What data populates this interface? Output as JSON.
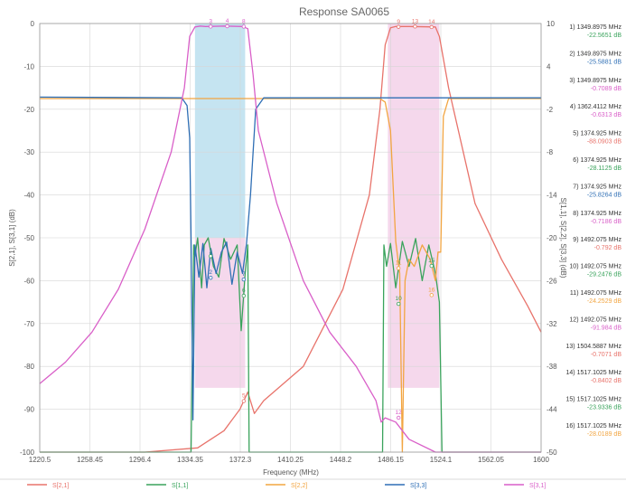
{
  "chart_data": {
    "type": "line",
    "title": "Response SA0065",
    "xlabel": "Frequency (MHz)",
    "ylabel_left": "S[2,1], S[3,1] (dB)",
    "ylabel_right": "S[1,1], S[2,2], S[3,3] (dB)",
    "xlim": [
      1220.5,
      1600
    ],
    "ylim_left": [
      -100,
      0
    ],
    "ylim_right": [
      -50,
      10
    ],
    "x_ticks": [
      "1220.5",
      "1258.45",
      "1296.4",
      "1334.35",
      "1372.3",
      "1410.25",
      "1448.2",
      "1486.15",
      "1524.1",
      "1562.05",
      "1600"
    ],
    "y_ticks_left": [
      "0",
      "-10",
      "-20",
      "-30",
      "-40",
      "-50",
      "-60",
      "-70",
      "-80",
      "-90",
      "-100"
    ],
    "y_ticks_right": [
      "10",
      "4",
      "-2",
      "-8",
      "-14",
      "-20",
      "-26",
      "-32",
      "-38",
      "-44",
      "-50"
    ],
    "grid": true,
    "legend_position": "bottom",
    "colors": {
      "S21": "#e8736b",
      "S11": "#3aa35c",
      "S22": "#f2a541",
      "S33": "#2f6fb5",
      "S31": "#d95fc8",
      "band1_fill": "#7fc4e0",
      "band2_fill": "#e8a8d4"
    },
    "series": [
      {
        "name": "S[2,1]",
        "axis": "left",
        "color": "#e8736b",
        "x": [
          1220.5,
          1300,
          1340,
          1360,
          1372,
          1378,
          1381,
          1383,
          1390,
          1420,
          1450,
          1470,
          1478,
          1482,
          1486,
          1490,
          1500,
          1520,
          1523,
          1530,
          1550,
          1570,
          1590,
          1600
        ],
        "y": [
          -100,
          -100,
          -99,
          -95,
          -90,
          -86,
          -89,
          -91,
          -88,
          -80,
          -62,
          -40,
          -20,
          -5,
          -1,
          -0.7,
          -0.7,
          -0.8,
          -3,
          -15,
          -42,
          -55,
          -66,
          -72
        ]
      },
      {
        "name": "S[1,1]",
        "axis": "right",
        "color": "#3aa35c",
        "x": [
          1220.5,
          1330,
          1335,
          1337,
          1338,
          1340,
          1343,
          1345,
          1348,
          1352,
          1356,
          1360,
          1365,
          1370,
          1373,
          1376,
          1378,
          1379,
          1385,
          1470,
          1480,
          1481,
          1483,
          1486,
          1490,
          1495,
          1500,
          1505,
          1510,
          1515,
          1520,
          1523,
          1525,
          1600
        ],
        "y": [
          -50,
          -50,
          -50,
          -21,
          -22.6,
          -20,
          -27,
          -21,
          -20,
          -24,
          -25.5,
          -20.1,
          -23,
          -21,
          -33,
          -25,
          -21,
          -50,
          -50,
          -50,
          -50,
          -21,
          -24,
          -20.8,
          -27,
          -20.5,
          -24,
          -20.1,
          -26,
          -21,
          -25,
          -29,
          -50,
          -50
        ]
      },
      {
        "name": "S[2,2]",
        "axis": "right",
        "color": "#f2a541",
        "x": [
          1220.5,
          1478,
          1482,
          1486,
          1490,
          1493,
          1495,
          1497,
          1500,
          1504,
          1510,
          1516,
          1520,
          1522,
          1524,
          1526,
          1530,
          1600
        ],
        "y": [
          -0.5,
          -0.5,
          -1,
          -5,
          -20.5,
          -25,
          -50,
          -26,
          -23,
          -24,
          -21,
          -23,
          -26,
          -22,
          -22,
          -3,
          -0.5,
          -0.5
        ]
      },
      {
        "name": "S[3,3]",
        "axis": "right",
        "color": "#2f6fb5",
        "x": [
          1220.5,
          1328,
          1332,
          1334,
          1335,
          1336.5,
          1338,
          1341,
          1344,
          1347,
          1350,
          1354,
          1358,
          1362,
          1366,
          1370,
          1374,
          1377,
          1380,
          1384,
          1390,
          1600
        ],
        "y": [
          -0.3,
          -0.4,
          -1.5,
          -6,
          -20,
          -45.5,
          -21,
          -25.5,
          -20.8,
          -27,
          -21.5,
          -25,
          -22,
          -20.6,
          -26.5,
          -22,
          -25,
          -20.8,
          -14,
          -2,
          -0.4,
          -0.4
        ]
      },
      {
        "name": "S[3,1]",
        "axis": "left",
        "color": "#d95fc8",
        "x": [
          1220.5,
          1240,
          1260,
          1280,
          1300,
          1320,
          1330,
          1334,
          1338,
          1342,
          1346,
          1360,
          1374,
          1378,
          1382,
          1386,
          1400,
          1420,
          1440,
          1460,
          1475,
          1479,
          1482,
          1490,
          1500,
          1520,
          1600
        ],
        "y": [
          -84,
          -79,
          -72,
          -62,
          -48,
          -30,
          -15,
          -3,
          -0.8,
          -0.6,
          -0.7,
          -0.6,
          -0.7,
          -1.2,
          -12,
          -25,
          -42,
          -60,
          -72,
          -80,
          -88,
          -93,
          -92,
          -93,
          -97,
          -100,
          -100
        ]
      }
    ],
    "bands": [
      {
        "x0": 1338,
        "x1": 1376,
        "y0": -85,
        "y1": -50,
        "color": "#e8a8d4"
      },
      {
        "x0": 1338,
        "x1": 1376,
        "y0": -50,
        "y1": 0,
        "color": "#7fc4e0"
      },
      {
        "x0": 1484,
        "x1": 1523,
        "y0": -85,
        "y1": 0,
        "color": "#e8a8d4"
      }
    ],
    "markers": [
      {
        "n": "1",
        "x": 1349.8975,
        "y": -22.5651,
        "unit": "dB",
        "color": "#3aa35c",
        "axis": "right"
      },
      {
        "n": "2",
        "x": 1349.8975,
        "y": -25.5881,
        "unit": "dB",
        "color": "#2f6fb5",
        "axis": "right"
      },
      {
        "n": "3",
        "x": 1349.8975,
        "y": -0.7089,
        "unit": "dB",
        "color": "#d95fc8",
        "axis": "left"
      },
      {
        "n": "4",
        "x": 1362.4112,
        "y": -0.6313,
        "unit": "dB",
        "color": "#d95fc8",
        "axis": "left"
      },
      {
        "n": "5",
        "x": 1374.925,
        "y": -88.0903,
        "unit": "dB",
        "color": "#e8736b",
        "axis": "left"
      },
      {
        "n": "6",
        "x": 1374.925,
        "y": -28.1125,
        "unit": "dB",
        "color": "#3aa35c",
        "axis": "right"
      },
      {
        "n": "7",
        "x": 1374.925,
        "y": -25.8264,
        "unit": "dB",
        "color": "#2f6fb5",
        "axis": "right"
      },
      {
        "n": "8",
        "x": 1374.925,
        "y": -0.7186,
        "unit": "dB",
        "color": "#d95fc8",
        "axis": "left"
      },
      {
        "n": "9",
        "x": 1492.075,
        "y": -0.792,
        "unit": "dB",
        "color": "#e8736b",
        "axis": "left"
      },
      {
        "n": "10",
        "x": 1492.075,
        "y": -29.2476,
        "unit": "dB",
        "color": "#3aa35c",
        "axis": "right"
      },
      {
        "n": "11",
        "x": 1492.075,
        "y": -24.2529,
        "unit": "dB",
        "color": "#f2a541",
        "axis": "right"
      },
      {
        "n": "12",
        "x": 1492.075,
        "y": -91.984,
        "unit": "dB",
        "color": "#d95fc8",
        "axis": "left"
      },
      {
        "n": "13",
        "x": 1504.5887,
        "y": -0.7071,
        "unit": "dB",
        "color": "#e8736b",
        "axis": "left"
      },
      {
        "n": "14",
        "x": 1517.1025,
        "y": -0.8402,
        "unit": "dB",
        "color": "#e8736b",
        "axis": "left"
      },
      {
        "n": "15",
        "x": 1517.1025,
        "y": -23.9336,
        "unit": "dB",
        "color": "#3aa35c",
        "axis": "right"
      },
      {
        "n": "16",
        "x": 1517.1025,
        "y": -28.0189,
        "unit": "dB",
        "color": "#f2a541",
        "axis": "right"
      }
    ],
    "marker_list": [
      {
        "line1": "1) 1349.8975 MHz",
        "line2": "-22.5651 dB",
        "color": "#3aa35c"
      },
      {
        "line1": "2) 1349.8975 MHz",
        "line2": "-25.5881 dB",
        "color": "#2f6fb5"
      },
      {
        "line1": "3) 1349.8975 MHz",
        "line2": "-0.7089 dB",
        "color": "#d95fc8"
      },
      {
        "line1": "4) 1362.4112 MHz",
        "line2": "-0.6313 dB",
        "color": "#d95fc8"
      },
      {
        "line1": "5) 1374.925 MHz",
        "line2": "-88.0903 dB",
        "color": "#e8736b"
      },
      {
        "line1": "6) 1374.925 MHz",
        "line2": "-28.1125 dB",
        "color": "#3aa35c"
      },
      {
        "line1": "7) 1374.925 MHz",
        "line2": "-25.8264 dB",
        "color": "#2f6fb5"
      },
      {
        "line1": "8) 1374.925 MHz",
        "line2": "-0.7186 dB",
        "color": "#d95fc8"
      },
      {
        "line1": "9) 1492.075 MHz",
        "line2": "-0.792 dB",
        "color": "#e8736b"
      },
      {
        "line1": "10) 1492.075 MHz",
        "line2": "-29.2476 dB",
        "color": "#3aa35c"
      },
      {
        "line1": "11) 1492.075 MHz",
        "line2": "-24.2529 dB",
        "color": "#f2a541"
      },
      {
        "line1": "12) 1492.075 MHz",
        "line2": "-91.984 dB",
        "color": "#d95fc8"
      },
      {
        "line1": "13) 1504.5887 MHz",
        "line2": "-0.7071 dB",
        "color": "#e8736b"
      },
      {
        "line1": "14) 1517.1025 MHz",
        "line2": "-0.8402 dB",
        "color": "#e8736b"
      },
      {
        "line1": "15) 1517.1025 MHz",
        "line2": "-23.9336 dB",
        "color": "#3aa35c"
      },
      {
        "line1": "16) 1517.1025 MHz",
        "line2": "-28.0189 dB",
        "color": "#f2a541"
      }
    ],
    "legend": [
      {
        "label": "S[2,1]",
        "color": "#e8736b"
      },
      {
        "label": "S[1,1]",
        "color": "#3aa35c"
      },
      {
        "label": "S[2,2]",
        "color": "#f2a541"
      },
      {
        "label": "S[3,3]",
        "color": "#2f6fb5"
      },
      {
        "label": "S[3,1]",
        "color": "#d95fc8"
      }
    ]
  }
}
